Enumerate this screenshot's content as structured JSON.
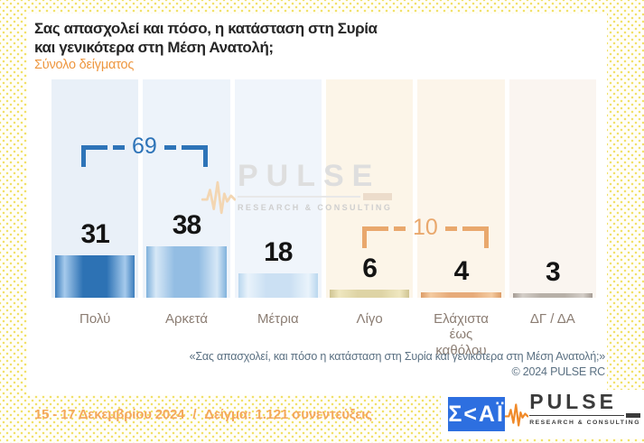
{
  "header": {
    "title_line1": "Σας απασχολεί και πόσο, η κατάσταση στη Συρία",
    "title_line2": "και γενικότερα στη Μέση Ανατολή;",
    "subtitle": "Σύνολο δείγματος"
  },
  "chart_data": {
    "type": "bar",
    "title": "Σας απασχολεί και πόσο, η κατάσταση στη Συρία και γενικότερα στη Μέση Ανατολή;",
    "subtitle": "Σύνολο δείγματος",
    "unit": "percent",
    "categories": [
      "Πολύ",
      "Αρκετά",
      "Μέτρια",
      "Λίγο",
      "Ελάχιστα έως καθόλου",
      "ΔΓ / ΔΑ"
    ],
    "values": [
      31,
      38,
      18,
      6,
      4,
      3
    ],
    "bar_colors": [
      "#2d72b4",
      "#93bde3",
      "#cbe0f3",
      "#ded4a5",
      "#e7ab7a",
      "#b7b0a8"
    ],
    "column_bg_colors": [
      "#e9f0f8",
      "#edf3fa",
      "#f0f5fb",
      "#fcf5e8",
      "#fcf5ea",
      "#faf5f0"
    ],
    "group_brackets": [
      {
        "label": "69",
        "from_category": "Πολύ",
        "to_category": "Αρκετά",
        "color": "#2e74b8"
      },
      {
        "label": "10",
        "from_category": "Λίγο",
        "to_category": "Ελάχιστα έως καθόλου",
        "color": "#e9a86d"
      }
    ],
    "value_labels_position": "above bars",
    "gridlines": false,
    "y_axis_visible": false,
    "legend": "none"
  },
  "watermark": {
    "name": "PULSE",
    "tagline": "RESEARCH & CONSULTING"
  },
  "footer": {
    "source_question": "«Σας απασχολεί, και πόσο η κατάσταση στη Συρία και γενικότερα στη Μέση Ανατολή;»",
    "copyright": "©  2024  PULSE RC",
    "date_range": "15 - 17 Δεκεμβρίου 2024",
    "separator": "/",
    "sample": "Δείγμα:  1.121 συνεντεύξεις"
  },
  "branding": {
    "skai_logo_text": "Σ<ΑΪ",
    "pulse_logo_name": "PULSE",
    "pulse_logo_tagline": "RESEARCH & CONSULTING"
  },
  "colors": {
    "accent_orange": "#ee9740",
    "date_orange": "#f4a85c",
    "bracket_blue": "#2e74b8",
    "bracket_orange": "#e9a86d",
    "skai_blue": "#2d6fe0",
    "dot_pattern_yellow": "#f1e065"
  }
}
